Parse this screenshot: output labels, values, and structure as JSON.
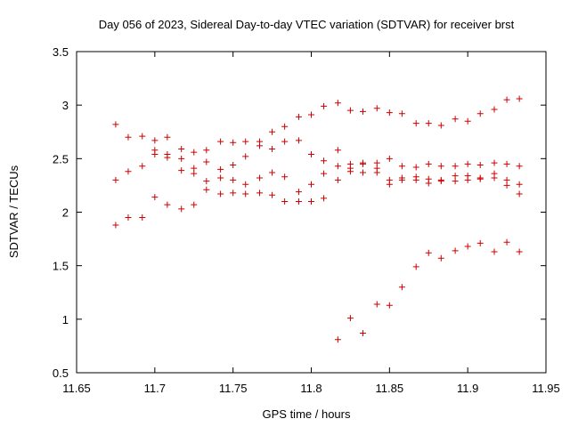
{
  "chart_data": {
    "type": "scatter",
    "title": "Day 056 of 2023, Sidereal Day-to-day VTEC variation (SDTVAR) for receiver brst",
    "xlabel": "GPS time / hours",
    "ylabel": "SDTVAR / TECUs",
    "xlim": [
      11.65,
      11.95
    ],
    "ylim": [
      0.5,
      3.5
    ],
    "xticks": [
      "11.65",
      "11.7",
      "11.75",
      "11.8",
      "11.85",
      "11.9",
      "11.95"
    ],
    "yticks": [
      "0.5",
      "1",
      "1.5",
      "2",
      "2.5",
      "3",
      "3.5"
    ],
    "grid": false,
    "marker": "+",
    "color": "#cc0000",
    "points": [
      [
        11.675,
        2.82
      ],
      [
        11.675,
        2.3
      ],
      [
        11.675,
        1.88
      ],
      [
        11.683,
        2.7
      ],
      [
        11.683,
        2.38
      ],
      [
        11.683,
        1.95
      ],
      [
        11.692,
        2.71
      ],
      [
        11.692,
        2.43
      ],
      [
        11.692,
        1.95
      ],
      [
        11.7,
        2.67
      ],
      [
        11.7,
        2.58
      ],
      [
        11.7,
        2.54
      ],
      [
        11.7,
        2.14
      ],
      [
        11.708,
        2.7
      ],
      [
        11.708,
        2.54
      ],
      [
        11.708,
        2.51
      ],
      [
        11.708,
        2.07
      ],
      [
        11.717,
        2.59
      ],
      [
        11.717,
        2.5
      ],
      [
        11.717,
        2.39
      ],
      [
        11.717,
        2.03
      ],
      [
        11.725,
        2.56
      ],
      [
        11.725,
        2.41
      ],
      [
        11.725,
        2.36
      ],
      [
        11.725,
        2.07
      ],
      [
        11.733,
        2.58
      ],
      [
        11.733,
        2.47
      ],
      [
        11.733,
        2.29
      ],
      [
        11.733,
        2.21
      ],
      [
        11.742,
        2.66
      ],
      [
        11.742,
        2.4
      ],
      [
        11.742,
        2.32
      ],
      [
        11.742,
        2.17
      ],
      [
        11.75,
        2.65
      ],
      [
        11.75,
        2.44
      ],
      [
        11.75,
        2.3
      ],
      [
        11.75,
        2.18
      ],
      [
        11.758,
        2.66
      ],
      [
        11.758,
        2.52
      ],
      [
        11.758,
        2.26
      ],
      [
        11.758,
        2.17
      ],
      [
        11.767,
        2.66
      ],
      [
        11.767,
        2.62
      ],
      [
        11.767,
        2.32
      ],
      [
        11.767,
        2.18
      ],
      [
        11.775,
        2.75
      ],
      [
        11.775,
        2.59
      ],
      [
        11.775,
        2.37
      ],
      [
        11.775,
        2.16
      ],
      [
        11.783,
        2.8
      ],
      [
        11.783,
        2.66
      ],
      [
        11.783,
        2.33
      ],
      [
        11.783,
        2.1
      ],
      [
        11.792,
        2.89
      ],
      [
        11.792,
        2.67
      ],
      [
        11.792,
        2.19
      ],
      [
        11.792,
        2.1
      ],
      [
        11.8,
        2.91
      ],
      [
        11.8,
        2.54
      ],
      [
        11.8,
        2.26
      ],
      [
        11.8,
        2.1
      ],
      [
        11.808,
        2.99
      ],
      [
        11.808,
        2.48
      ],
      [
        11.808,
        2.36
      ],
      [
        11.808,
        2.13
      ],
      [
        11.817,
        3.02
      ],
      [
        11.817,
        2.58
      ],
      [
        11.817,
        2.43
      ],
      [
        11.817,
        2.3
      ],
      [
        11.817,
        0.81
      ],
      [
        11.825,
        2.95
      ],
      [
        11.825,
        2.45
      ],
      [
        11.825,
        2.41
      ],
      [
        11.825,
        2.38
      ],
      [
        11.825,
        1.01
      ],
      [
        11.833,
        2.94
      ],
      [
        11.833,
        2.46
      ],
      [
        11.833,
        2.45
      ],
      [
        11.833,
        2.37
      ],
      [
        11.833,
        0.87
      ],
      [
        11.842,
        2.97
      ],
      [
        11.842,
        2.46
      ],
      [
        11.842,
        2.41
      ],
      [
        11.842,
        2.37
      ],
      [
        11.842,
        1.14
      ],
      [
        11.85,
        2.93
      ],
      [
        11.85,
        2.5
      ],
      [
        11.85,
        2.3
      ],
      [
        11.85,
        2.26
      ],
      [
        11.85,
        1.13
      ],
      [
        11.858,
        2.92
      ],
      [
        11.858,
        2.43
      ],
      [
        11.858,
        2.32
      ],
      [
        11.858,
        2.3
      ],
      [
        11.858,
        1.3
      ],
      [
        11.867,
        2.83
      ],
      [
        11.867,
        2.42
      ],
      [
        11.867,
        2.33
      ],
      [
        11.867,
        2.3
      ],
      [
        11.867,
        1.49
      ],
      [
        11.875,
        2.83
      ],
      [
        11.875,
        2.45
      ],
      [
        11.875,
        2.31
      ],
      [
        11.875,
        2.27
      ],
      [
        11.875,
        1.62
      ],
      [
        11.883,
        2.81
      ],
      [
        11.883,
        2.43
      ],
      [
        11.883,
        2.3
      ],
      [
        11.883,
        2.29
      ],
      [
        11.883,
        1.57
      ],
      [
        11.892,
        2.87
      ],
      [
        11.892,
        2.43
      ],
      [
        11.892,
        2.34
      ],
      [
        11.892,
        2.29
      ],
      [
        11.892,
        1.64
      ],
      [
        11.9,
        2.85
      ],
      [
        11.9,
        2.45
      ],
      [
        11.9,
        2.34
      ],
      [
        11.9,
        2.3
      ],
      [
        11.9,
        1.68
      ],
      [
        11.908,
        2.92
      ],
      [
        11.908,
        2.44
      ],
      [
        11.908,
        2.32
      ],
      [
        11.908,
        2.31
      ],
      [
        11.908,
        1.71
      ],
      [
        11.917,
        2.96
      ],
      [
        11.917,
        2.46
      ],
      [
        11.917,
        2.36
      ],
      [
        11.917,
        2.32
      ],
      [
        11.917,
        1.63
      ],
      [
        11.925,
        3.05
      ],
      [
        11.925,
        2.45
      ],
      [
        11.925,
        2.3
      ],
      [
        11.925,
        2.25
      ],
      [
        11.925,
        1.72
      ],
      [
        11.933,
        3.06
      ],
      [
        11.933,
        2.43
      ],
      [
        11.933,
        2.26
      ],
      [
        11.933,
        2.17
      ],
      [
        11.933,
        1.63
      ]
    ]
  }
}
